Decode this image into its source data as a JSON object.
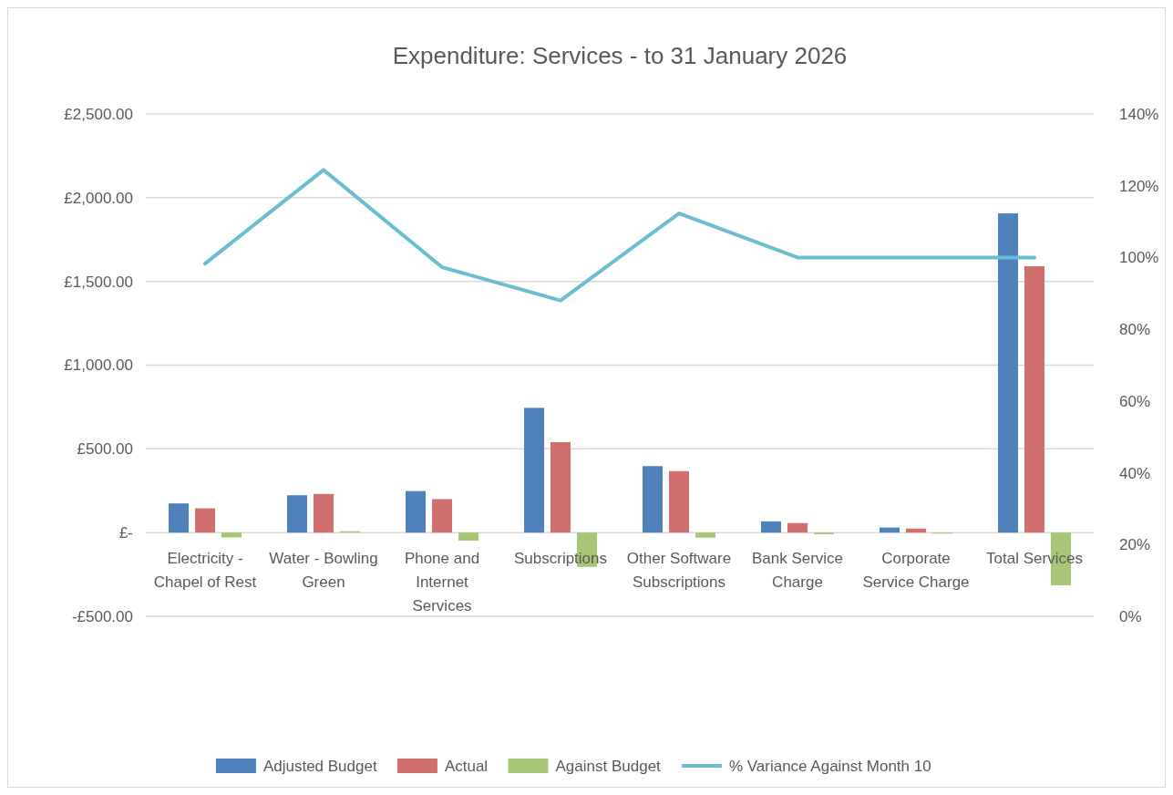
{
  "chart_data": {
    "type": "bar",
    "title": "Expenditure: Services - to 31 January 2026",
    "categories": [
      "Electricity - Chapel of Rest",
      "Water - Bowling Green",
      "Phone and Internet Services",
      "Subscriptions",
      "Other Software Subscriptions",
      "Bank Service Charge",
      "Corporate Service Charge",
      "Total Services"
    ],
    "series": [
      {
        "name": "Adjusted Budget",
        "color": "#4f81bd",
        "values": [
          174,
          223,
          248,
          745,
          397,
          67,
          30,
          1906
        ]
      },
      {
        "name": "Actual",
        "color": "#cf6f6e",
        "values": [
          145,
          231,
          200,
          540,
          367,
          57,
          24,
          1591
        ]
      },
      {
        "name": "Against Budget",
        "color": "#a7c777",
        "values": [
          -29,
          8,
          -48,
          -205,
          -30,
          -10,
          -6,
          -315
        ]
      },
      {
        "name": "% Variance Against Month 10",
        "type": "line",
        "axis": "y2",
        "color": "#6cbdd1",
        "values": [
          98.3,
          124.4,
          97.3,
          88.0,
          112.3,
          100,
          100,
          100
        ]
      }
    ],
    "ylim": [
      -500,
      2500
    ],
    "yticks": [
      {
        "value": -500,
        "label": "-£500.00"
      },
      {
        "value": 0,
        "label": "£-"
      },
      {
        "value": 500,
        "label": "£500.00"
      },
      {
        "value": 1000,
        "label": "£1,000.00"
      },
      {
        "value": 1500,
        "label": "£1,500.00"
      },
      {
        "value": 2000,
        "label": "£2,000.00"
      },
      {
        "value": 2500,
        "label": "£2,500.00"
      }
    ],
    "y2lim": [
      0,
      140
    ],
    "y2ticks": [
      {
        "value": 0,
        "label": "0%"
      },
      {
        "value": 20,
        "label": "20%"
      },
      {
        "value": 40,
        "label": "40%"
      },
      {
        "value": 60,
        "label": "60%"
      },
      {
        "value": 80,
        "label": "80%"
      },
      {
        "value": 100,
        "label": "100%"
      },
      {
        "value": 120,
        "label": "120%"
      },
      {
        "value": 140,
        "label": "140%"
      }
    ],
    "grid": "y",
    "legend": "bottom",
    "line_style": "solid",
    "marker": "none"
  }
}
